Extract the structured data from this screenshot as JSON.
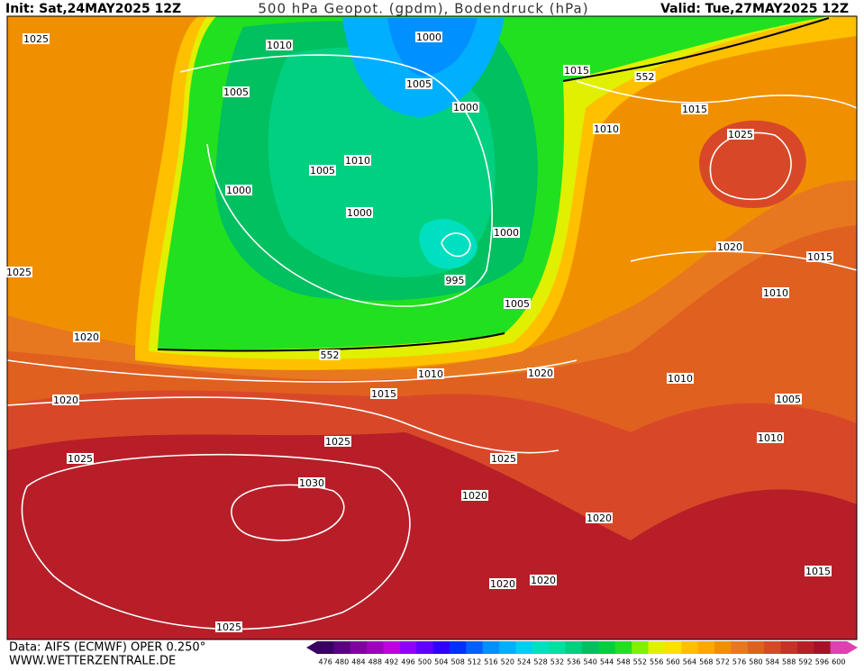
{
  "header": {
    "init": "Init: Sat,24MAY2025 12Z",
    "title": "500 hPa Geopot. (gpdm), Bodendruck (hPa)",
    "valid": "Valid: Tue,27MAY2025 12Z"
  },
  "isobar_labels": [
    "1025",
    "1010",
    "1000",
    "1005",
    "1015",
    "552",
    "1005",
    "1000",
    "1015",
    "1010",
    "1025",
    "1005",
    "1010",
    "1000",
    "1000",
    "1000",
    "1020",
    "1015",
    "1025",
    "995",
    "1010",
    "1005",
    "1020",
    "552",
    "1010",
    "1020",
    "1010",
    "1015",
    "1020",
    "1005",
    "1010",
    "1025",
    "1025",
    "1025",
    "1030",
    "1020",
    "1020",
    "1015",
    "1020",
    "1020",
    "1025"
  ],
  "footer": {
    "source": "Data: AIFS (ECMWF) OPER 0.250°",
    "site": "WWW.WETTERZENTRALE.DE"
  },
  "colorbar": {
    "labels": [
      476,
      480,
      484,
      488,
      492,
      496,
      500,
      504,
      508,
      512,
      516,
      520,
      524,
      528,
      532,
      536,
      540,
      544,
      548,
      552,
      556,
      560,
      564,
      568,
      572,
      576,
      580,
      584,
      588,
      592,
      596,
      600
    ],
    "colors": [
      "#3a0060",
      "#5a0080",
      "#8000a0",
      "#a000c0",
      "#c000e0",
      "#9000ff",
      "#6000ff",
      "#3000ff",
      "#0030ff",
      "#0060ff",
      "#0090ff",
      "#00b0ff",
      "#00d0f0",
      "#00e0c0",
      "#00e0a0",
      "#00d080",
      "#00c060",
      "#00d040",
      "#20e020",
      "#80f000",
      "#e0f000",
      "#ffe000",
      "#ffc000",
      "#ffa800",
      "#f09000",
      "#e87820",
      "#e06020",
      "#d84828",
      "#c83028",
      "#b81e28",
      "#a81028",
      "#e040b0"
    ]
  }
}
